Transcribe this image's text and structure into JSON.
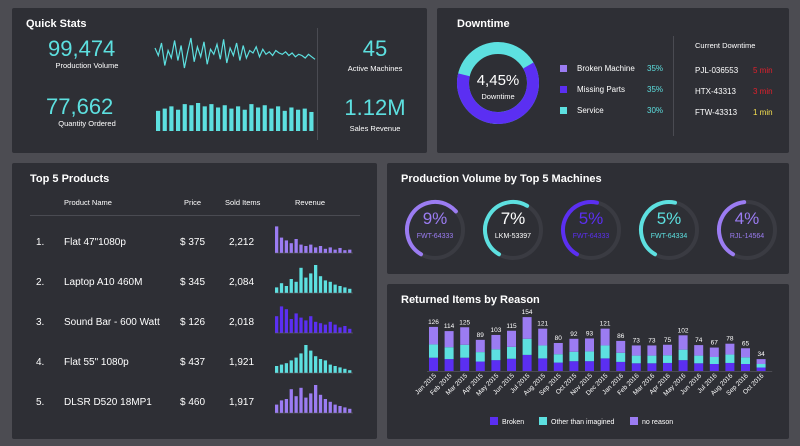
{
  "quick_stats": {
    "title": "Quick Stats",
    "production_volume": {
      "value": "99,474",
      "label": "Production Volume"
    },
    "quantity_ordered": {
      "value": "77,662",
      "label": "Quantity Ordered"
    },
    "active_machines": {
      "value": "45",
      "label": "Active Machines"
    },
    "sales_revenue": {
      "value": "1.12M",
      "label": "Sales Revenue"
    },
    "sparkline": [
      36,
      30,
      40,
      22,
      34,
      28,
      42,
      26,
      38,
      20,
      33,
      44,
      25,
      37,
      29,
      41,
      23,
      35,
      31,
      39,
      27,
      43,
      24,
      36,
      30,
      40,
      26,
      38,
      28,
      34,
      32,
      37,
      29,
      35,
      31,
      33,
      30,
      34,
      32,
      31,
      33,
      30,
      32,
      29,
      31,
      30,
      28,
      31,
      29,
      27
    ],
    "bars": [
      18,
      20,
      22,
      19,
      24,
      23,
      25,
      22,
      24,
      21,
      23,
      20,
      22,
      19,
      24,
      21,
      23,
      20,
      22,
      18,
      21,
      19,
      20,
      17
    ]
  },
  "downtime": {
    "title": "Downtime",
    "percent": "4,45%",
    "label": "Downtime",
    "ring_fraction": 0.62,
    "legend": [
      {
        "name": "Broken Machine",
        "value": "35%",
        "color": "#9b7cf2"
      },
      {
        "name": "Missing Parts",
        "value": "35%",
        "color": "#5b2ff2"
      },
      {
        "name": "Service",
        "value": "30%",
        "color": "#5de0e0"
      }
    ],
    "current_title": "Current Downtime",
    "current": [
      {
        "id": "PJL-036553",
        "duration": "5 min",
        "color": "#e0202c"
      },
      {
        "id": "HTX-43313",
        "duration": "3 min",
        "color": "#e0202c"
      },
      {
        "id": "FTW-43313",
        "duration": "1 min",
        "color": "#f5e050"
      }
    ]
  },
  "top5": {
    "title": "Top 5 Products",
    "headers": {
      "name": "Product Name",
      "price": "Price",
      "sold": "Sold Items",
      "revenue": "Revenue"
    },
    "rows": [
      {
        "rank": "1.",
        "name": "Flat 47\"1080p",
        "price": "$ 375",
        "sold": "2,212",
        "color": "#9b7cf2",
        "spark": [
          0.95,
          0.55,
          0.45,
          0.35,
          0.5,
          0.3,
          0.25,
          0.3,
          0.2,
          0.25,
          0.15,
          0.2,
          0.12,
          0.18,
          0.1,
          0.12
        ]
      },
      {
        "rank": "2.",
        "name": "Laptop A10 460M",
        "price": "$ 345",
        "sold": "2,084",
        "color": "#5de0e0",
        "spark": [
          0.2,
          0.35,
          0.25,
          0.5,
          0.4,
          0.9,
          0.55,
          0.7,
          1.0,
          0.6,
          0.45,
          0.4,
          0.3,
          0.25,
          0.2,
          0.15
        ]
      },
      {
        "rank": "3.",
        "name": "Sound Bar - 600 Watt",
        "price": "$ 126",
        "sold": "2,018",
        "color": "#5b2ff2",
        "spark": [
          0.6,
          0.95,
          0.85,
          0.5,
          0.7,
          0.55,
          0.45,
          0.6,
          0.4,
          0.35,
          0.3,
          0.4,
          0.3,
          0.2,
          0.25,
          0.15
        ]
      },
      {
        "rank": "4.",
        "name": "Flat 55\" 1080p",
        "price": "$ 437",
        "sold": "1,921",
        "color": "#5de0e0",
        "spark": [
          0.25,
          0.3,
          0.35,
          0.45,
          0.55,
          0.7,
          1.0,
          0.8,
          0.6,
          0.5,
          0.45,
          0.3,
          0.25,
          0.2,
          0.15,
          0.1
        ]
      },
      {
        "rank": "5.",
        "name": "DLSR D520 18MP1",
        "price": "$ 460",
        "sold": "1,917",
        "color": "#9b7cf2",
        "spark": [
          0.3,
          0.45,
          0.5,
          0.85,
          0.6,
          0.9,
          0.55,
          0.7,
          1.0,
          0.65,
          0.5,
          0.4,
          0.3,
          0.25,
          0.2,
          0.15
        ]
      }
    ]
  },
  "machines": {
    "title": "Production Volume by Top 5 Machines",
    "items": [
      {
        "percent": "9%",
        "id": "FWT-64333",
        "color": "#9b7cf2",
        "text_color": "#9b7cf2",
        "fraction": 0.55
      },
      {
        "percent": "7%",
        "id": "LKM-53397",
        "color": "#5de0e0",
        "text_color": "#ffffff",
        "fraction": 0.5
      },
      {
        "percent": "5%",
        "id": "FWT-64333",
        "color": "#5b2ff2",
        "text_color": "#5b2ff2",
        "fraction": 0.45
      },
      {
        "percent": "5%",
        "id": "FWT-64334",
        "color": "#5de0e0",
        "text_color": "#5de0e0",
        "fraction": 0.45
      },
      {
        "percent": "4%",
        "id": "RJL-14564",
        "color": "#9b7cf2",
        "text_color": "#9b7cf2",
        "fraction": 0.4
      }
    ]
  },
  "chart_data": {
    "type": "bar",
    "title": "Returned Items by Reason",
    "categories": [
      "Jan 2015",
      "Feb 2015",
      "Mar 2015",
      "Apr 2015",
      "May 2015",
      "Jun 2015",
      "Jul 2015",
      "Aug 2015",
      "Sep 2015",
      "Oct 2015",
      "Nov 2015",
      "Dec 2015",
      "Jan 2016",
      "Feb 2016",
      "Mar 2016",
      "Apr 2016",
      "May 2016",
      "Jun 2016",
      "Jul 2016",
      "Aug 2016",
      "Sep 2016",
      "Oct 2016"
    ],
    "totals": [
      126,
      114,
      125,
      89,
      103,
      115,
      154,
      121,
      80,
      92,
      93,
      121,
      86,
      73,
      73,
      75,
      102,
      74,
      67,
      78,
      65,
      34
    ],
    "series": [
      {
        "name": "Broken",
        "color": "#5b2ff2",
        "values": [
          38,
          34,
          38,
          27,
          31,
          35,
          46,
          36,
          24,
          28,
          28,
          36,
          26,
          22,
          22,
          23,
          31,
          22,
          20,
          23,
          20,
          10
        ]
      },
      {
        "name": "Other than imagined",
        "color": "#5de0e0",
        "values": [
          38,
          34,
          37,
          27,
          31,
          34,
          46,
          37,
          24,
          27,
          28,
          37,
          26,
          22,
          22,
          22,
          30,
          22,
          20,
          24,
          19,
          10
        ]
      },
      {
        "name": "no reason",
        "color": "#9b7cf2",
        "values": [
          50,
          46,
          50,
          35,
          41,
          46,
          62,
          48,
          32,
          37,
          37,
          48,
          34,
          29,
          29,
          30,
          41,
          30,
          27,
          31,
          26,
          14
        ]
      }
    ],
    "ylim": [
      0,
      160
    ]
  }
}
